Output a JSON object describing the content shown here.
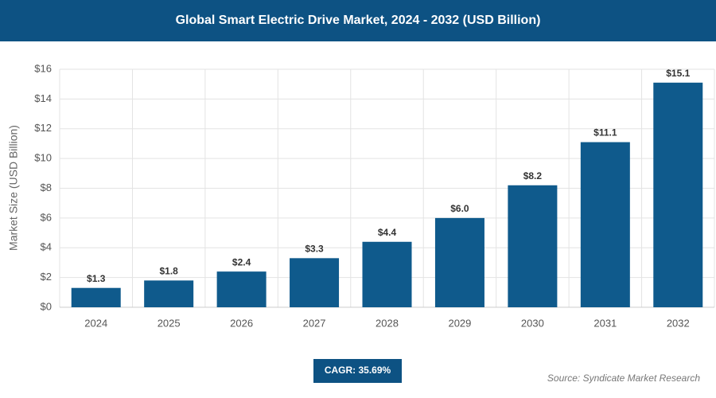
{
  "chart_data": {
    "type": "bar",
    "title": "Global Smart Electric Drive Market, 2024 - 2032 (USD Billion)",
    "y_label": "Market Size (USD Billion)",
    "categories": [
      "2024",
      "2025",
      "2026",
      "2027",
      "2028",
      "2029",
      "2030",
      "2031",
      "2032"
    ],
    "values": [
      1.3,
      1.8,
      2.4,
      3.3,
      4.4,
      6.0,
      8.2,
      11.1,
      15.1
    ],
    "value_labels": [
      "$1.3",
      "$1.8",
      "$2.4",
      "$3.3",
      "$4.4",
      "$6.0",
      "$8.2",
      "$11.1",
      "$15.1"
    ],
    "color": "#0f5a8c",
    "ylim": [
      0,
      16
    ],
    "yticks": [
      {
        "value": 0,
        "label": "$0"
      },
      {
        "value": 2,
        "label": "$2"
      },
      {
        "value": 4,
        "label": "$4"
      },
      {
        "value": 6,
        "label": "$6"
      },
      {
        "value": 8,
        "label": "$8"
      },
      {
        "value": 10,
        "label": "$10"
      },
      {
        "value": 12,
        "label": "$12"
      },
      {
        "value": 14,
        "label": "$14"
      },
      {
        "value": 16,
        "label": "$16"
      }
    ],
    "grid": true,
    "annotation": "CAGR: 35.69%",
    "source": "Source: Syndicate Market Research"
  }
}
